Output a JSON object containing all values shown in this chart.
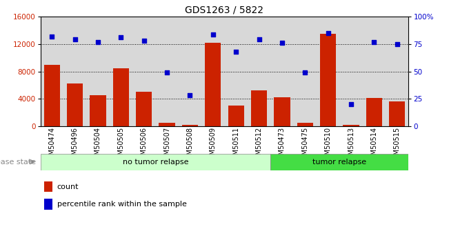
{
  "title": "GDS1263 / 5822",
  "categories": [
    "GSM50474",
    "GSM50496",
    "GSM50504",
    "GSM50505",
    "GSM50506",
    "GSM50507",
    "GSM50508",
    "GSM50509",
    "GSM50511",
    "GSM50512",
    "GSM50473",
    "GSM50475",
    "GSM50510",
    "GSM50513",
    "GSM50514",
    "GSM50515"
  ],
  "counts": [
    9000,
    6200,
    4500,
    8500,
    5000,
    500,
    200,
    12200,
    3000,
    5200,
    4200,
    500,
    13500,
    200,
    4100,
    3600
  ],
  "percentiles": [
    82,
    79,
    77,
    81,
    78,
    49,
    28,
    84,
    68,
    79,
    76,
    49,
    85,
    20,
    77,
    75
  ],
  "no_tumor_count": 10,
  "tumor_count": 6,
  "bar_color": "#cc2200",
  "scatter_color": "#0000cc",
  "ylim_left": [
    0,
    16000
  ],
  "ylim_right": [
    0,
    100
  ],
  "yticks_left": [
    0,
    4000,
    8000,
    12000,
    16000
  ],
  "yticks_right": [
    0,
    25,
    50,
    75,
    100
  ],
  "no_tumor_color": "#ccffcc",
  "tumor_color": "#44dd44",
  "bg_color": "#d8d8d8",
  "disease_label": "disease state",
  "no_tumor_label": "no tumor relapse",
  "tumor_label": "tumor relapse",
  "count_legend": "count",
  "percentile_legend": "percentile rank within the sample"
}
